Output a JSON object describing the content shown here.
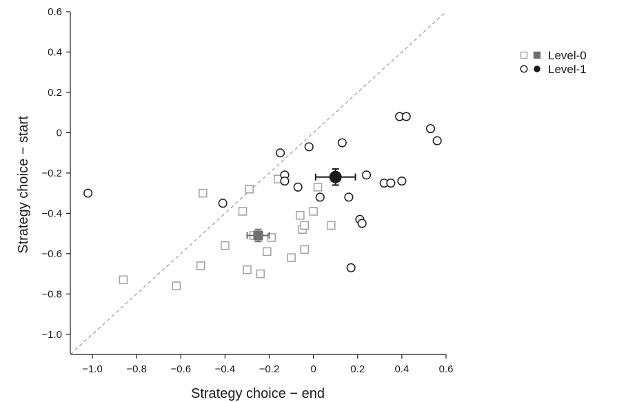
{
  "chart_data": {
    "type": "scatter",
    "title": "",
    "xlabel": "Strategy choice − end",
    "ylabel": "Strategy choice − start",
    "xlim": [
      -1.1,
      0.6
    ],
    "ylim": [
      -1.1,
      0.6
    ],
    "x_ticks": [
      -1.0,
      -0.8,
      -0.6,
      -0.4,
      -0.2,
      0,
      0.2,
      0.4,
      0.6
    ],
    "x_tick_labels": [
      "−1.0",
      "−0.8",
      "−0.6",
      "−0.4",
      "−0.2",
      "0",
      "0.2",
      "0.4",
      "0.6"
    ],
    "y_ticks": [
      0.6,
      0.4,
      0.2,
      0,
      -0.2,
      -0.4,
      -0.6,
      -0.8,
      -1.0
    ],
    "y_tick_labels": [
      "0.6",
      "0.4",
      "0.2",
      "0",
      "−0.2",
      "−0.4",
      "−0.6",
      "−0.8",
      "−1.0"
    ],
    "grid": false,
    "legend_position": "top-right",
    "reference_line": {
      "style": "dashed",
      "from": [
        -1.1,
        -1.1
      ],
      "to": [
        0.6,
        0.6
      ]
    },
    "series": [
      {
        "name": "Level-0",
        "marker": "square",
        "color": "#a0a0a0",
        "mean_color": "#707070",
        "points": [
          [
            -0.86,
            -0.73
          ],
          [
            -0.62,
            -0.76
          ],
          [
            -0.51,
            -0.66
          ],
          [
            -0.5,
            -0.3
          ],
          [
            -0.4,
            -0.56
          ],
          [
            -0.32,
            -0.39
          ],
          [
            -0.3,
            -0.68
          ],
          [
            -0.29,
            -0.28
          ],
          [
            -0.27,
            -0.51
          ],
          [
            -0.24,
            -0.7
          ],
          [
            -0.21,
            -0.59
          ],
          [
            -0.19,
            -0.52
          ],
          [
            -0.16,
            -0.23
          ],
          [
            -0.1,
            -0.62
          ],
          [
            -0.06,
            -0.41
          ],
          [
            -0.05,
            -0.48
          ],
          [
            -0.04,
            -0.46
          ],
          [
            -0.04,
            -0.58
          ],
          [
            0.0,
            -0.39
          ],
          [
            0.02,
            -0.27
          ],
          [
            0.08,
            -0.46
          ]
        ],
        "mean": {
          "x": -0.25,
          "y": -0.51,
          "x_err": 0.05,
          "y_err": 0.03
        }
      },
      {
        "name": "Level-1",
        "marker": "circle",
        "color": "#1a1a1a",
        "mean_color": "#1a1a1a",
        "points": [
          [
            -1.02,
            -0.3
          ],
          [
            -0.41,
            -0.35
          ],
          [
            -0.15,
            -0.1
          ],
          [
            -0.13,
            -0.21
          ],
          [
            -0.13,
            -0.24
          ],
          [
            -0.07,
            -0.27
          ],
          [
            -0.02,
            -0.07
          ],
          [
            0.03,
            -0.32
          ],
          [
            0.13,
            -0.05
          ],
          [
            0.16,
            -0.32
          ],
          [
            0.17,
            -0.67
          ],
          [
            0.21,
            -0.43
          ],
          [
            0.22,
            -0.45
          ],
          [
            0.24,
            -0.21
          ],
          [
            0.32,
            -0.25
          ],
          [
            0.35,
            -0.25
          ],
          [
            0.39,
            0.08
          ],
          [
            0.4,
            -0.24
          ],
          [
            0.42,
            0.08
          ],
          [
            0.53,
            0.02
          ],
          [
            0.56,
            -0.04
          ]
        ],
        "mean": {
          "x": 0.1,
          "y": -0.22,
          "x_err": 0.09,
          "y_err": 0.04
        }
      }
    ]
  }
}
